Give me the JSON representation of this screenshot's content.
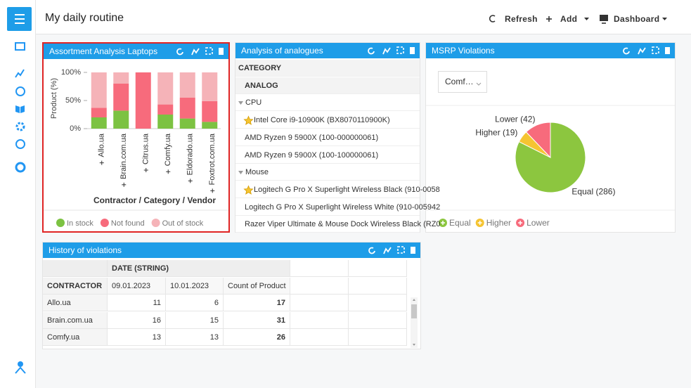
{
  "header": {
    "title": "My daily routine",
    "buttons": [
      "Refresh",
      "Add",
      "Dashboard"
    ]
  },
  "chart_data": [
    {
      "type": "bar",
      "stacked": true,
      "title": "Assortment Analysis Laptops",
      "categories": [
        "Allo.ua",
        "Brain.com.ua",
        "Citrus.ua",
        "Comfy.ua",
        "Eldorado.ua",
        "Foxtrot.com.ua"
      ],
      "series": [
        {
          "name": "In stock",
          "color": "#7cc242",
          "values": [
            20,
            32,
            0,
            25,
            18,
            12
          ]
        },
        {
          "name": "Not found",
          "color": "#f76b7c",
          "values": [
            17,
            48,
            100,
            18,
            37,
            37
          ]
        },
        {
          "name": "Out of stock",
          "color": "#f5b3b8",
          "values": [
            63,
            20,
            0,
            57,
            45,
            51
          ]
        }
      ],
      "ylabel": "Product (%)",
      "xlabel": "Contractor / Category / Vendor",
      "ylim": [
        0,
        100
      ],
      "yticks": [
        {
          "value": 0,
          "label": "0%"
        },
        {
          "value": 50,
          "label": "50%"
        },
        {
          "value": 100,
          "label": "100%"
        }
      ],
      "legend": "bottom"
    },
    {
      "type": "pie",
      "title": "MSRP Violations",
      "dropdown": "Comf…",
      "categories": [
        "Equal",
        "Higher",
        "Lower"
      ],
      "values": [
        286,
        19,
        42
      ],
      "value_labels": [
        "Equal (286)",
        "Higher (19)",
        "Lower (42)"
      ],
      "colors": [
        "#8cc63f",
        "#f5c431",
        "#f76b7c"
      ],
      "legend": "bottom"
    }
  ],
  "analogues": {
    "title": "Analysis of analogues",
    "columns": [
      "CATEGORY",
      "ANALOG"
    ],
    "groups": [
      {
        "name": "CPU",
        "items": [
          "Intel Core i9-10900K (BX8070110900K)",
          "AMD Ryzen 9 5900X (100-000000061)",
          "AMD Ryzen 9 5900X (100-100000061)"
        ]
      },
      {
        "name": "Mouse",
        "items": [
          "Logitech G Pro X Superlight Wireless Black (910-0058",
          "Logitech G Pro X Superlight Wireless White (910-005942",
          "Razer Viper Ultimate & Mouse Dock Wireless Black (RZ0"
        ]
      }
    ]
  },
  "history": {
    "title": "History of violations",
    "column_header": "DATE (STRING)",
    "row_header": "CONTRACTOR",
    "columns": [
      "09.01.2023",
      "10.01.2023",
      "Count of Product"
    ],
    "rows": [
      {
        "name": "Allo.ua",
        "values": [
          11,
          6,
          17
        ]
      },
      {
        "name": "Brain.com.ua",
        "values": [
          16,
          15,
          31
        ]
      },
      {
        "name": "Comfy.ua",
        "values": [
          13,
          13,
          26
        ]
      }
    ]
  }
}
